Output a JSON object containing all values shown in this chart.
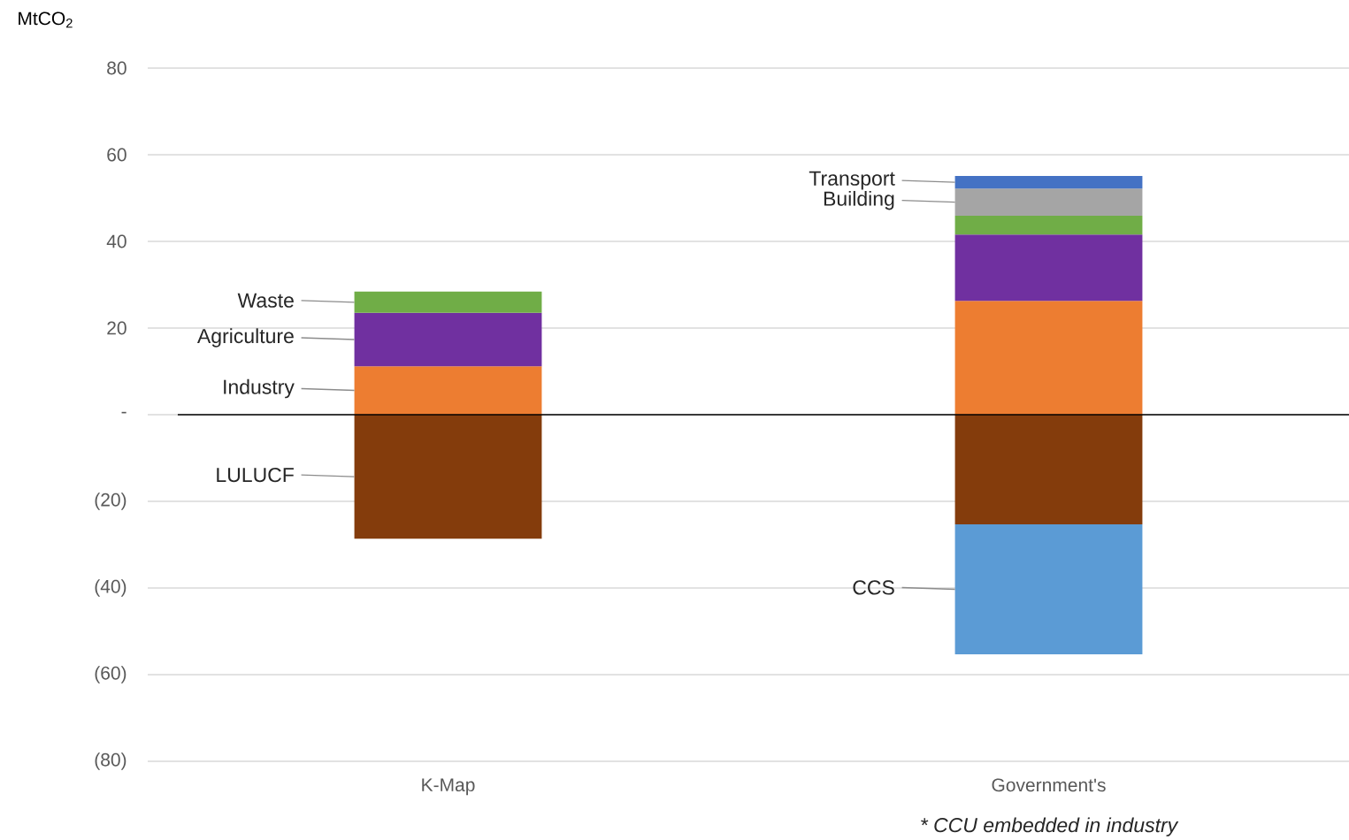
{
  "chart_data": {
    "type": "bar",
    "stacked": true,
    "ylabel": "MtCO$_{2}$",
    "categories": [
      "K-Map",
      "Government's"
    ],
    "series": [
      {
        "name": "Industry",
        "color": "#ed7d31",
        "values": [
          11.2,
          26.3
        ]
      },
      {
        "name": "Agriculture",
        "color": "#7030a0",
        "values": [
          12.3,
          15.3
        ]
      },
      {
        "name": "Waste",
        "color": "#70ad47",
        "values": [
          4.9,
          4.3
        ]
      },
      {
        "name": "Building",
        "color": "#a5a5a5",
        "values": [
          null,
          6.3
        ]
      },
      {
        "name": "Transport",
        "color": "#4472c4",
        "values": [
          null,
          2.9
        ]
      },
      {
        "name": "LULUCF",
        "color": "#843c0c",
        "values": [
          -28.6,
          -25.3
        ]
      },
      {
        "name": "CCS",
        "color": "#5b9bd5",
        "values": [
          null,
          -30.0
        ]
      }
    ],
    "ylim": [
      -80,
      80
    ],
    "yticks": [
      {
        "value": -80,
        "label": "(80)"
      },
      {
        "value": -60,
        "label": "(60)"
      },
      {
        "value": -40,
        "label": "(40)"
      },
      {
        "value": -20,
        "label": "(20)"
      },
      {
        "value": 0,
        "label": "-"
      },
      20,
      40,
      60,
      80
    ],
    "grid": "y",
    "annotations": [
      "* CCU embedded in industry"
    ]
  }
}
